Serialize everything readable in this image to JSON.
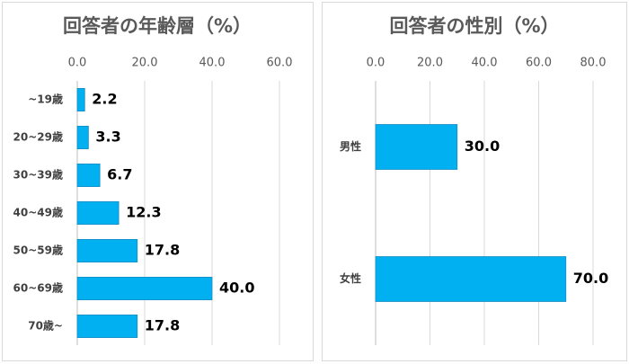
{
  "chart_data": [
    {
      "type": "hbar",
      "title": "回答者の年齢層（%）",
      "categories": [
        "~19歳",
        "20~29歳",
        "30~39歳",
        "40~49歳",
        "50~59歳",
        "60~69歳",
        "70歳~"
      ],
      "values": [
        2.2,
        3.3,
        6.7,
        12.3,
        17.8,
        40.0,
        17.8
      ],
      "value_labels": [
        "2.2",
        "3.3",
        "6.7",
        "12.3",
        "17.8",
        "40.0",
        "17.8"
      ],
      "color": "#00b0f0",
      "xlim": [
        0,
        60
      ],
      "xticks": [
        {
          "value": 0,
          "label": "0.0"
        },
        {
          "value": 20,
          "label": "20.0"
        },
        {
          "value": 40,
          "label": "40.0"
        },
        {
          "value": 60,
          "label": "60.0"
        }
      ],
      "grid": true
    },
    {
      "type": "hbar",
      "title": "回答者の性別（%）",
      "categories": [
        "男性",
        "女性"
      ],
      "values": [
        30.0,
        70.0
      ],
      "value_labels": [
        "30.0",
        "70.0"
      ],
      "color": "#00b0f0",
      "xlim": [
        0,
        80
      ],
      "xticks": [
        {
          "value": 0,
          "label": "0.0"
        },
        {
          "value": 20,
          "label": "20.0"
        },
        {
          "value": 40,
          "label": "40.0"
        },
        {
          "value": 60,
          "label": "60.0"
        },
        {
          "value": 80,
          "label": "80.0"
        }
      ],
      "grid": true
    }
  ]
}
